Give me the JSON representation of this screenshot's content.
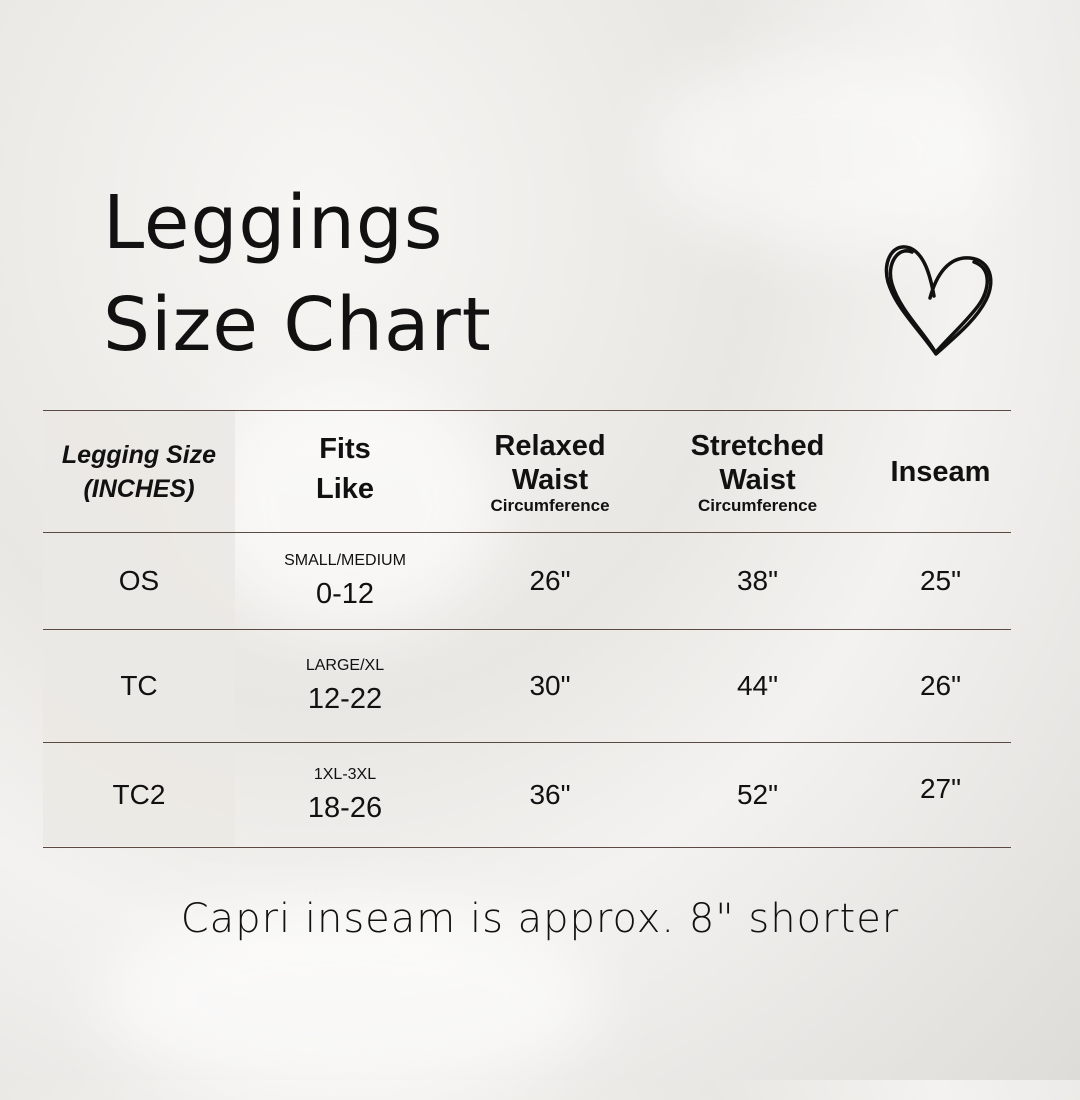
{
  "title_line1": "Leggings",
  "title_line2": "Size Chart",
  "heart_icon": "heart-outline-icon",
  "table": {
    "headers": [
      {
        "line1": "Legging Size",
        "line2": "(INCHES)"
      },
      {
        "line1": "Fits",
        "line2": "Like"
      },
      {
        "line1": "Relaxed",
        "line2": "Waist",
        "sub": "Circumference"
      },
      {
        "line1": "Stretched",
        "line2": "Waist",
        "sub": "Circumference"
      },
      {
        "line1": "Inseam"
      }
    ],
    "rows": [
      {
        "size": "OS",
        "fits_label": "SMALL/MEDIUM",
        "fits_range": "0-12",
        "relaxed": "26\"",
        "stretched": "38\"",
        "inseam": "25\""
      },
      {
        "size": "TC",
        "fits_label": "LARGE/XL",
        "fits_range": "12-22",
        "relaxed": "30\"",
        "stretched": "44\"",
        "inseam": "26\""
      },
      {
        "size": "TC2",
        "fits_label": "1XL-3XL",
        "fits_range": "18-26",
        "relaxed": "36\"",
        "stretched": "52\"",
        "inseam": "27\""
      }
    ]
  },
  "footer": "Capri inseam is approx. 8\" shorter",
  "colors": {
    "text": "#111111",
    "rule": "#5a4a42",
    "first_column_bg": "#ebe9e4"
  }
}
